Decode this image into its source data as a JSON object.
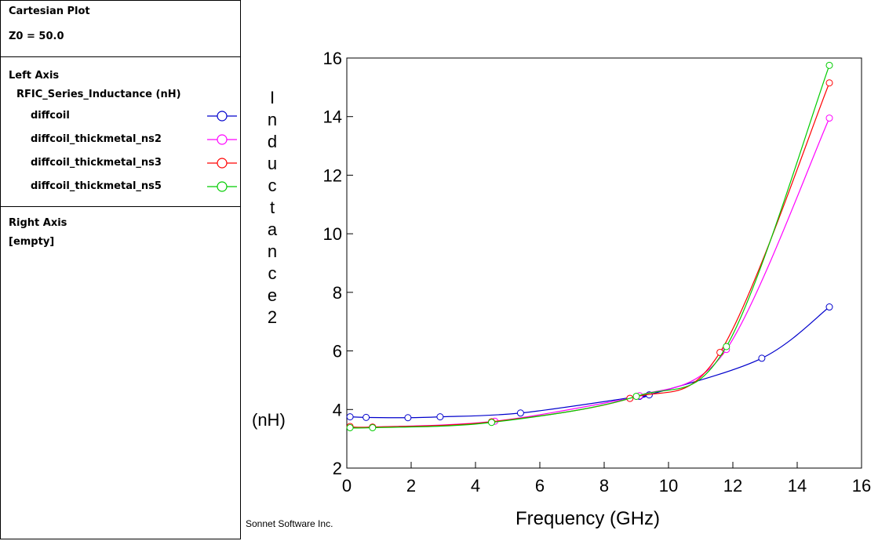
{
  "sidebar": {
    "title": "Cartesian Plot",
    "z0": "Z0 = 50.0",
    "left_axis_header": "Left Axis",
    "left_axis_quantity": "RFIC_Series_Inductance (nH)",
    "right_axis_header": "Right Axis",
    "right_axis_value": "[empty]"
  },
  "chart_data": {
    "type": "line",
    "xlabel": "Frequency (GHz)",
    "ylabel": "Inductance2",
    "ylabel_unit": "(nH)",
    "xlim": [
      0,
      16
    ],
    "ylim": [
      2,
      16
    ],
    "xticks": [
      0,
      2,
      4,
      6,
      8,
      10,
      12,
      14,
      16
    ],
    "yticks": [
      2,
      4,
      6,
      8,
      10,
      12,
      14,
      16
    ],
    "grid": false,
    "legend_placement": "left-panel",
    "credit": "Sonnet Software Inc.",
    "series": [
      {
        "name": "diffcoil",
        "color": "#0000cc",
        "x": [
          0.1,
          0.6,
          1.9,
          2.9,
          5.4,
          9.1,
          9.4,
          12.9,
          15.0
        ],
        "y": [
          3.75,
          3.73,
          3.72,
          3.75,
          3.88,
          4.45,
          4.5,
          5.75,
          7.5
        ]
      },
      {
        "name": "diffcoil_thickmetal_ns2",
        "color": "#ff00ff",
        "x": [
          0.1,
          0.8,
          4.6,
          8.8,
          9.1,
          11.8,
          15.0
        ],
        "y": [
          3.4,
          3.4,
          3.6,
          4.38,
          4.47,
          6.05,
          13.95
        ]
      },
      {
        "name": "diffcoil_thickmetal_ns3",
        "color": "#ff0000",
        "x": [
          0.1,
          0.8,
          4.5,
          8.8,
          11.6,
          15.0
        ],
        "y": [
          3.42,
          3.4,
          3.58,
          4.38,
          5.95,
          15.15
        ]
      },
      {
        "name": "diffcoil_thickmetal_ns5",
        "color": "#00cc00",
        "x": [
          0.1,
          0.8,
          4.5,
          9.0,
          11.8,
          15.0
        ],
        "y": [
          3.38,
          3.38,
          3.56,
          4.45,
          6.15,
          15.75
        ]
      }
    ]
  }
}
